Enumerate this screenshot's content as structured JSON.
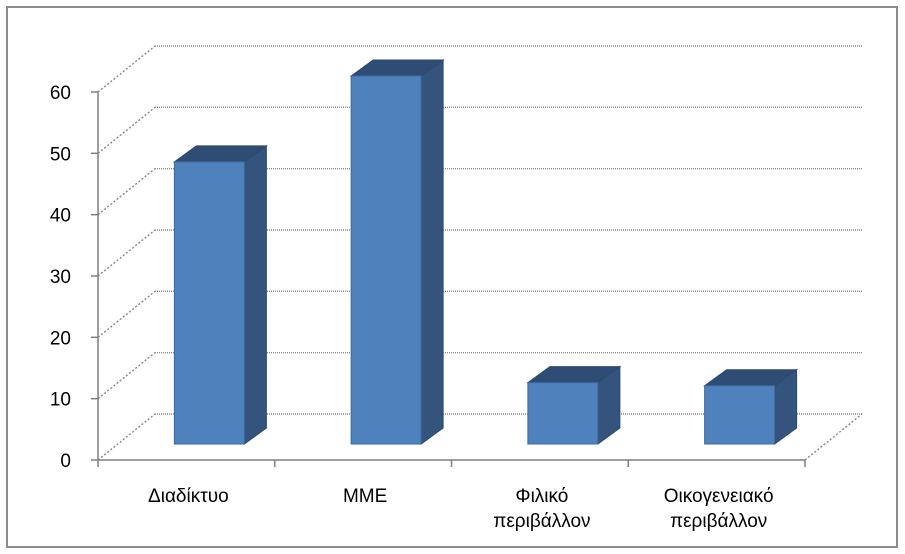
{
  "chart_data": {
    "type": "bar",
    "style": "3d-column",
    "categories": [
      "Διαδίκτυο",
      "ΜΜΕ",
      "Φιλικό περιβάλλον",
      "Οικογενειακό περιβάλλον"
    ],
    "category_lines": [
      [
        "Διαδίκτυο"
      ],
      [
        "ΜΜΕ"
      ],
      [
        "Φιλικό",
        "περιβάλλον"
      ],
      [
        "Οικογενειακό",
        "περιβάλλον"
      ]
    ],
    "values": [
      46,
      60,
      10,
      9.5
    ],
    "ylim": [
      0,
      60
    ],
    "yticks": [
      0,
      10,
      20,
      30,
      40,
      50,
      60
    ],
    "ytick_labels": [
      "0",
      "10",
      "20",
      "30",
      "40",
      "50",
      "60"
    ],
    "title": "",
    "xlabel": "",
    "ylabel": "",
    "grid": true,
    "legend": "none",
    "colors": {
      "bar_front": "#4f81bd",
      "bar_side": "#34547d",
      "bar_top": "#2f4d74",
      "grid": "#878787",
      "axis": "#7f7f7f",
      "frame": "#8c8c8c"
    }
  }
}
